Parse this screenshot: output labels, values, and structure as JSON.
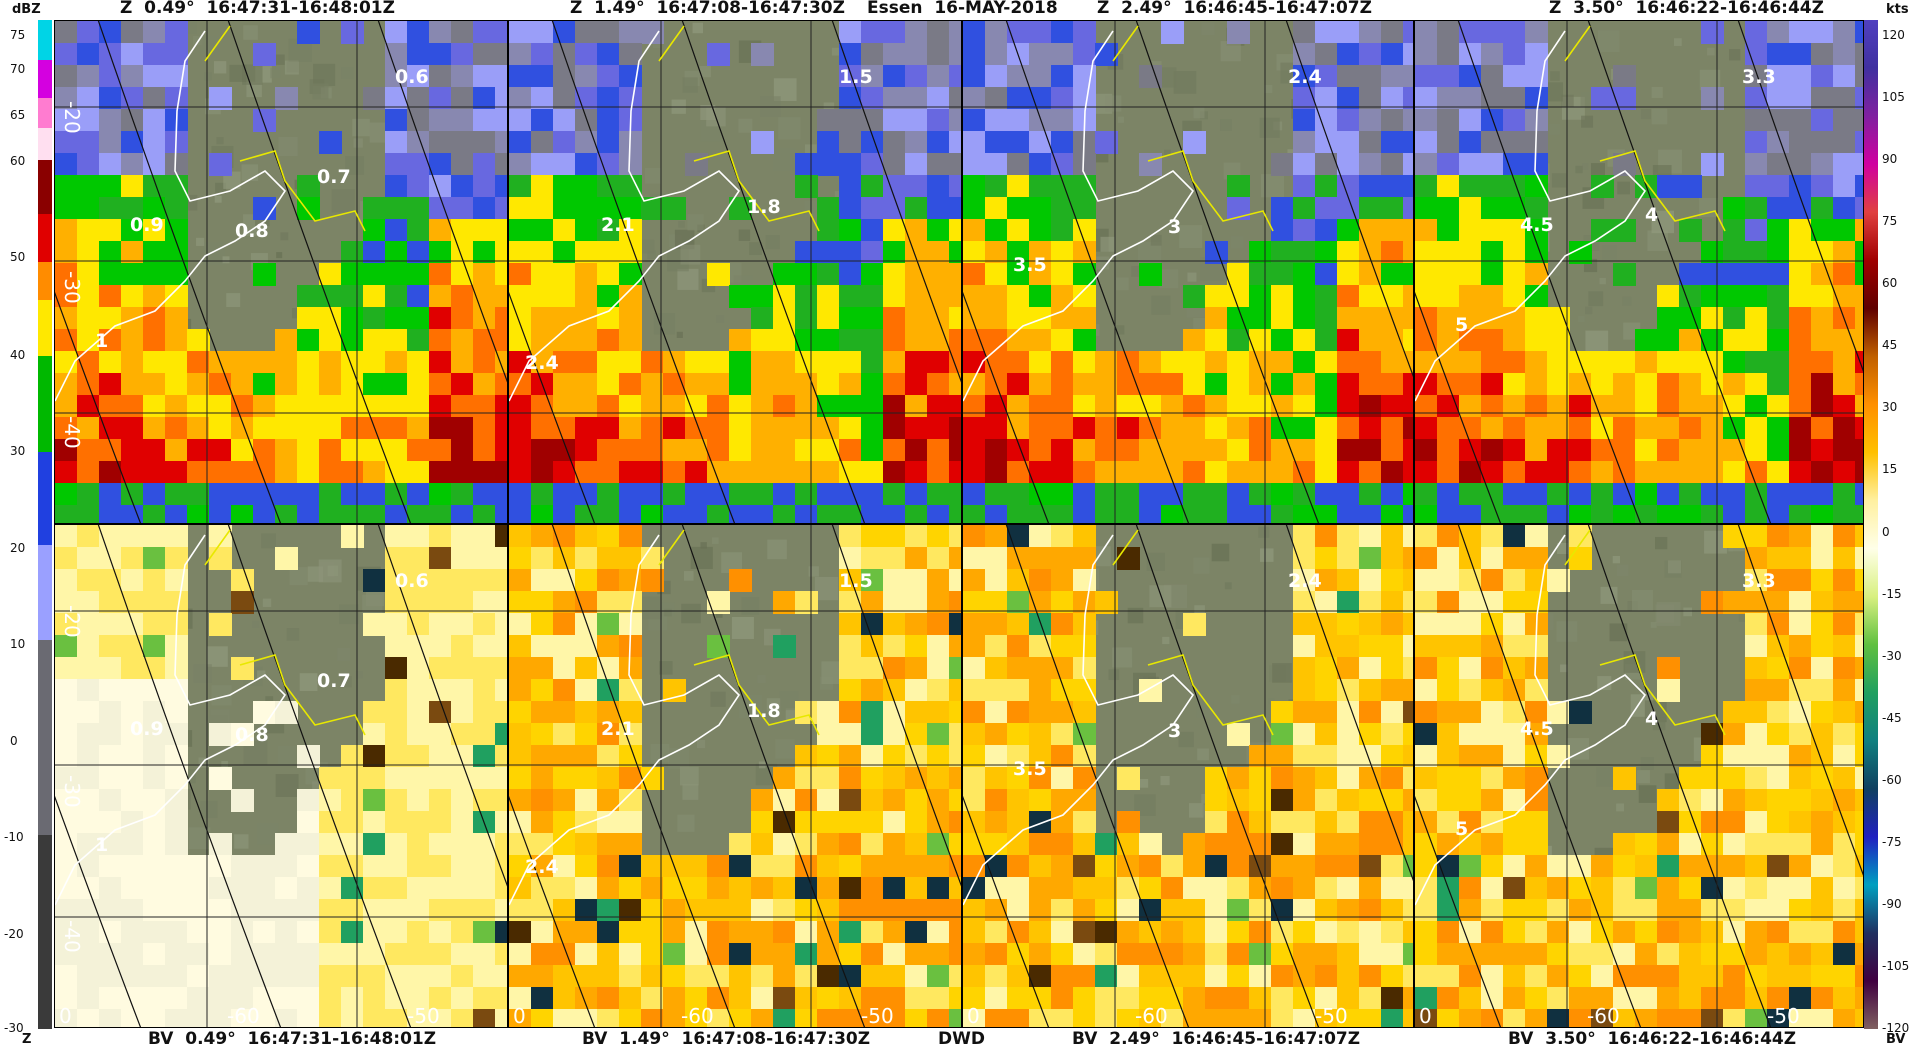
{
  "header_top": {
    "p1": "Z  0.49°  16:47:31-16:48:01Z",
    "p2": "Z  1.49°  16:47:08-16:47:30Z",
    "site": "Essen  16-MAY-2018",
    "p3": "Z  2.49°  16:46:45-16:47:07Z",
    "p4": "Z  3.50°  16:46:22-16:46:44Z"
  },
  "header_bottom": {
    "p1": "BV  0.49°  16:47:31-16:48:01Z",
    "p2": "BV  1.49°  16:47:08-16:47:30Z",
    "source": "DWD",
    "p3": "BV  2.49°  16:46:45-16:47:07Z",
    "p4": "BV  3.50°  16:46:22-16:46:44Z"
  },
  "legend_left": {
    "unit_top": "dBZ",
    "unit_bottom": "Z",
    "ticks": [
      "75",
      "70",
      "65",
      "60",
      "50",
      "40",
      "30",
      "20",
      "10",
      "0",
      "-10",
      "-20",
      "-30"
    ],
    "colors": [
      "#00d8e8",
      "#d800e0",
      "#ff7fd0",
      "#ffe0f0",
      "#8a0000",
      "#ff0000",
      "#ff8c00",
      "#ffe800",
      "#00c000",
      "#2040e0",
      "#9aa0ff",
      "#606060",
      "#303030"
    ]
  },
  "legend_right": {
    "unit_top": "kts",
    "unit_bottom": "BV",
    "ticks": [
      "120",
      "105",
      "90",
      "75",
      "60",
      "45",
      "30",
      "15",
      "0",
      "-15",
      "-30",
      "-45",
      "-60",
      "-75",
      "-90",
      "-105",
      "-120"
    ]
  },
  "panels_top": [
    {
      "heights": [
        {
          "t": "0.6"
        },
        {
          "t": "0.7"
        },
        {
          "t": "0.9"
        },
        {
          "t": "0.8"
        },
        {
          "t": "1"
        }
      ],
      "ring_labels": [
        "-20",
        "-30",
        "-40"
      ]
    },
    {
      "heights": [
        {
          "t": "1.5"
        },
        {
          "t": "1.8"
        },
        {
          "t": "2.1"
        },
        {
          "t": "2.4"
        }
      ]
    },
    {
      "heights": [
        {
          "t": "2.4"
        },
        {
          "t": "3"
        },
        {
          "t": "3.5"
        }
      ]
    },
    {
      "heights": [
        {
          "t": "3.3"
        },
        {
          "t": "4"
        },
        {
          "t": "4.5"
        },
        {
          "t": "5"
        }
      ]
    }
  ],
  "panels_bottom": [
    {
      "heights": [
        {
          "t": "0.6"
        },
        {
          "t": "0.7"
        },
        {
          "t": "0.9"
        },
        {
          "t": "0.8"
        },
        {
          "t": "1"
        }
      ],
      "ring_labels": [
        "-20",
        "-30",
        "-40"
      ],
      "axis": [
        "0",
        "-60",
        "-50"
      ]
    },
    {
      "heights": [
        {
          "t": "1.5"
        },
        {
          "t": "1.8"
        },
        {
          "t": "2.1"
        },
        {
          "t": "2.4"
        }
      ],
      "axis": [
        "0",
        "-60",
        "-50"
      ]
    },
    {
      "heights": [
        {
          "t": "2.4"
        },
        {
          "t": "3"
        },
        {
          "t": "3.5"
        }
      ],
      "axis": [
        "0",
        "-60",
        "-50"
      ]
    },
    {
      "heights": [
        {
          "t": "3.3"
        },
        {
          "t": "4"
        },
        {
          "t": "4.5"
        },
        {
          "t": "5"
        }
      ],
      "axis": [
        "0",
        "-60",
        "-50"
      ]
    }
  ]
}
